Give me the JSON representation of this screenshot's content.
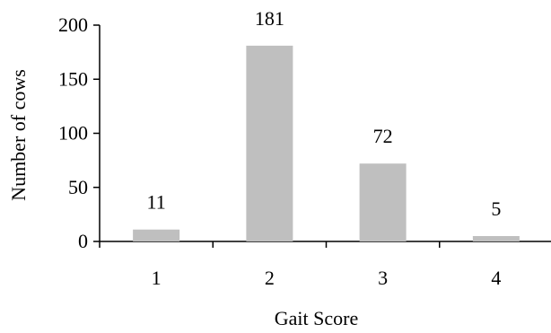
{
  "chart_data": {
    "type": "bar",
    "title": "",
    "xlabel": "Gait Score",
    "ylabel": "Number of cows",
    "categories": [
      "1",
      "2",
      "3",
      "4"
    ],
    "values": [
      11,
      181,
      72,
      5
    ],
    "data_labels": [
      "11",
      "181",
      "72",
      "5"
    ],
    "ylim": [
      0,
      200
    ],
    "yticks": [
      0,
      50,
      100,
      150,
      200
    ],
    "ytick_labels": [
      "0",
      "50",
      "100",
      "150",
      "200"
    ],
    "grid": false,
    "legend": "none",
    "bar_color": "#bfbfbf"
  }
}
